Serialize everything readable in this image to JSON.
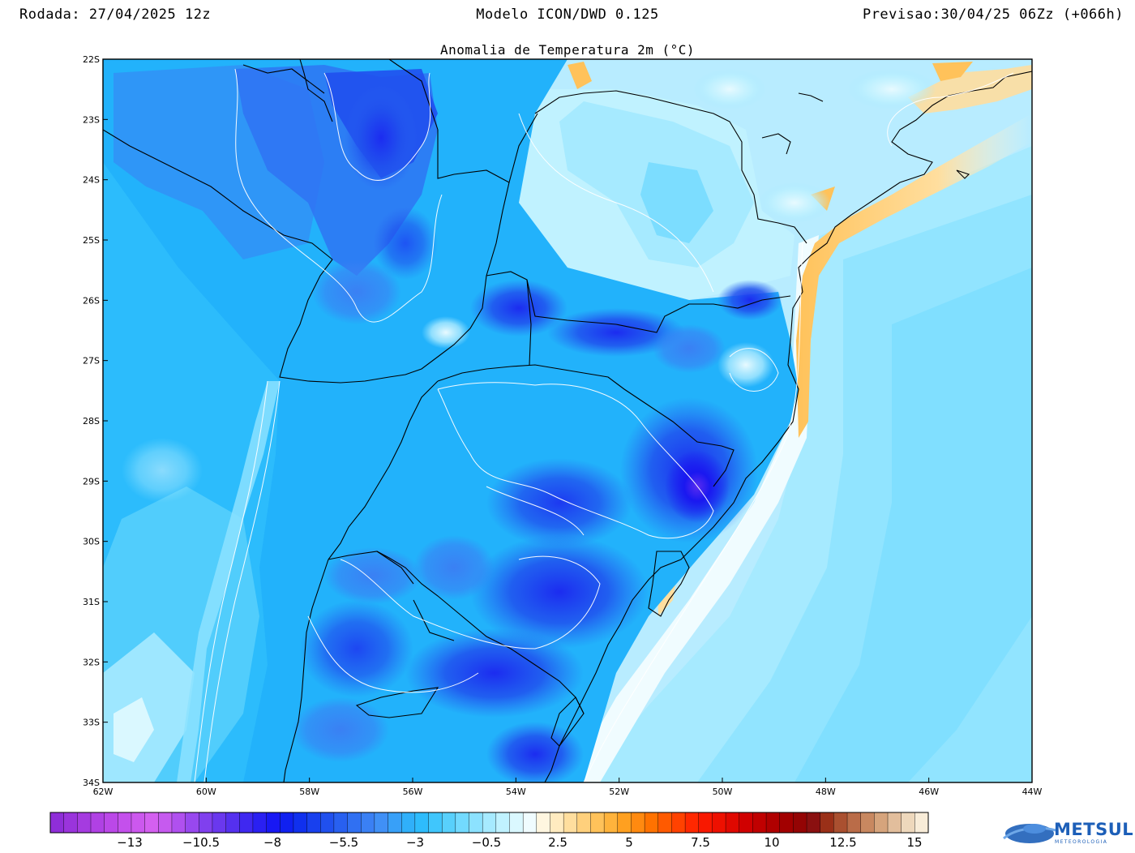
{
  "header": {
    "run": "Rodada: 27/04/2025 12z",
    "model": "Modelo ICON/DWD 0.125",
    "forecast": "Previsao:30/04/25 06Zz (+066h)"
  },
  "map": {
    "title": "Anomalia de Temperatura 2m (°C)",
    "lat_labels": [
      "22S",
      "23S",
      "24S",
      "25S",
      "26S",
      "27S",
      "28S",
      "29S",
      "30S",
      "31S",
      "32S",
      "33S",
      "34S"
    ],
    "lon_labels": [
      "62W",
      "60W",
      "58W",
      "56W",
      "54W",
      "52W",
      "50W",
      "48W",
      "46W",
      "44W"
    ],
    "lat_range": [
      -34,
      -22
    ],
    "lon_range": [
      -62,
      -44
    ]
  },
  "colorbar": {
    "tick_labels": [
      "−13",
      "−10.5",
      "−8",
      "−5.5",
      "−3",
      "−0.5",
      "2.5",
      "5",
      "7.5",
      "10",
      "12.5",
      "15"
    ],
    "colors": [
      "#8f2ed8",
      "#9a34dc",
      "#a53be0",
      "#b041e4",
      "#bb48e8",
      "#c450ec",
      "#cc58ee",
      "#d460f0",
      "#c65aef",
      "#b050ef",
      "#9848ef",
      "#8040ee",
      "#6a38ee",
      "#5530ef",
      "#3f28f0",
      "#2a20f2",
      "#1818f4",
      "#1020f0",
      "#1030ee",
      "#1840ee",
      "#2050ee",
      "#2860f0",
      "#3070f2",
      "#3a80f4",
      "#4090f6",
      "#38a0f8",
      "#30b0fa",
      "#2ebcfc",
      "#40c6fc",
      "#58d0fc",
      "#72daff",
      "#8ce2ff",
      "#a6eaff",
      "#c0f2ff",
      "#daf8ff",
      "#f0fcff",
      "#fff6e0",
      "#ffebc0",
      "#ffde9e",
      "#ffd07c",
      "#ffc25a",
      "#ffb33c",
      "#ffa020",
      "#ff8a10",
      "#ff7200",
      "#ff5a00",
      "#ff4200",
      "#ff2800",
      "#f81800",
      "#ee1000",
      "#e00800",
      "#d00000",
      "#c00000",
      "#b00000",
      "#a20000",
      "#940404",
      "#8a1010",
      "#9a3018",
      "#aa5030",
      "#ba6c48",
      "#c88860",
      "#d6a47c",
      "#e2be9c",
      "#eed8bc",
      "#f8ecd8"
    ]
  },
  "colors": {
    "land_base": "#22b2fb",
    "ocean_base": "#b0eaff"
  },
  "logo": {
    "text": "METSUL",
    "subtext": "METEOROLOGIA"
  }
}
